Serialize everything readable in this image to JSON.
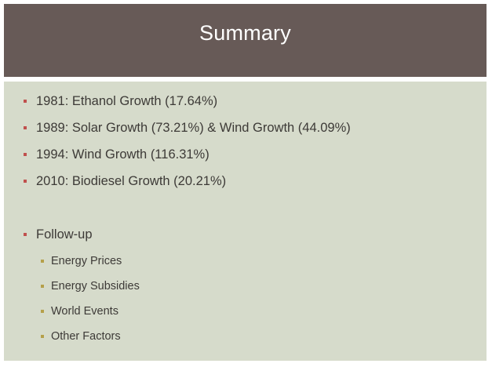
{
  "slide": {
    "title": "Summary",
    "colors": {
      "title_bar": "#675a57",
      "content_bg": "#d6dbcb",
      "bullet_marker": "#c0504d",
      "sub_bullet_marker": "#b5a04a"
    },
    "bullets": [
      "1981: Ethanol Growth (17.64%)",
      "1989: Solar Growth (73.21%) & Wind Growth (44.09%)",
      "1994: Wind Growth (116.31%)",
      "2010: Biodiesel Growth (20.21%)"
    ],
    "followup": {
      "label": "Follow-up",
      "items": [
        "Energy Prices",
        "Energy Subsidies",
        "World Events",
        "Other Factors"
      ]
    }
  }
}
